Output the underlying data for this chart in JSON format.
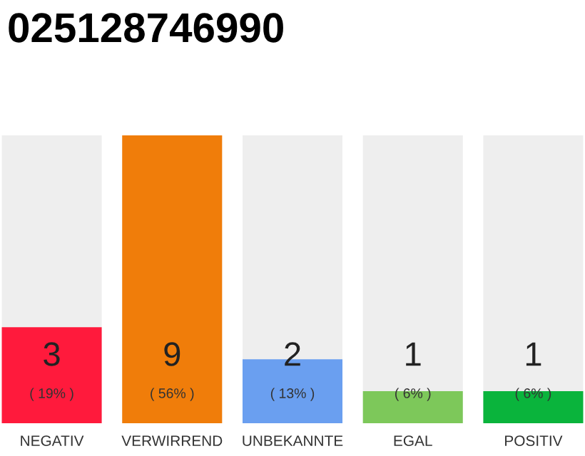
{
  "chart_data": {
    "type": "bar",
    "title": "025128746990",
    "categories": [
      "NEGATIV",
      "VERWIRREND",
      "UNBEKANNTE",
      "EGAL",
      "POSITIV"
    ],
    "values": [
      3,
      9,
      2,
      1,
      1
    ],
    "colors": [
      "#ff1a3c",
      "#f07d0a",
      "#6a9ff0",
      "#7dc85a",
      "#0ab43c"
    ],
    "data_labels": true,
    "annotations": [
      "( 19% )",
      "( 56% )",
      "( 13% )",
      "( 6% )",
      "( 6% )"
    ]
  }
}
